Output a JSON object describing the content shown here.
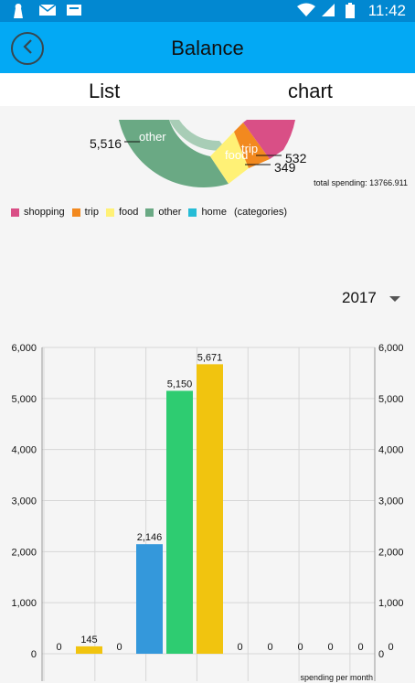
{
  "status": {
    "time": "11:42"
  },
  "header": {
    "title": "Balance"
  },
  "tabs": [
    {
      "label": "List"
    },
    {
      "label": "chart"
    }
  ],
  "pie": {
    "total_label": "total spending: 13766.911",
    "legend": [
      {
        "label": "shopping",
        "color": "#d94f86"
      },
      {
        "label": "trip",
        "color": "#f2891f"
      },
      {
        "label": "food",
        "color": "#fff176"
      },
      {
        "label": "other",
        "color": "#6aa984"
      },
      {
        "label": "home",
        "color": "#26bcd6"
      }
    ],
    "legend_suffix": "(categories)",
    "slice_labels": {
      "other": "other",
      "food": "food",
      "trip": "trip"
    },
    "callouts": {
      "other": "5,516",
      "trip": "532",
      "food": "349"
    }
  },
  "year_select": {
    "value": "2017"
  },
  "chart_data": {
    "type": "bar",
    "categories": [
      "",
      "",
      "",
      "",
      "",
      "",
      "",
      "",
      "",
      "",
      "",
      ""
    ],
    "values": [
      0,
      145,
      0,
      2146,
      5150,
      5671,
      0,
      0,
      0,
      0,
      0,
      0
    ],
    "value_labels": [
      "0",
      "145",
      "0",
      "2,146",
      "5,150",
      "5,671",
      "0",
      "0",
      "0",
      "0",
      "0",
      "0"
    ],
    "bar_colors": [
      "#f1c40f",
      "#f1c40f",
      "#f1c40f",
      "#3498db",
      "#2ecc71",
      "#f1c40f",
      "#f1c40f",
      "#f1c40f",
      "#f1c40f",
      "#f1c40f",
      "#f1c40f",
      "#f1c40f"
    ],
    "yticks": [
      "0",
      "1,000",
      "2,000",
      "3,000",
      "4,000",
      "5,000",
      "6,000"
    ],
    "ylim": [
      0,
      6000
    ],
    "grid": true,
    "footer": "spending per month"
  }
}
